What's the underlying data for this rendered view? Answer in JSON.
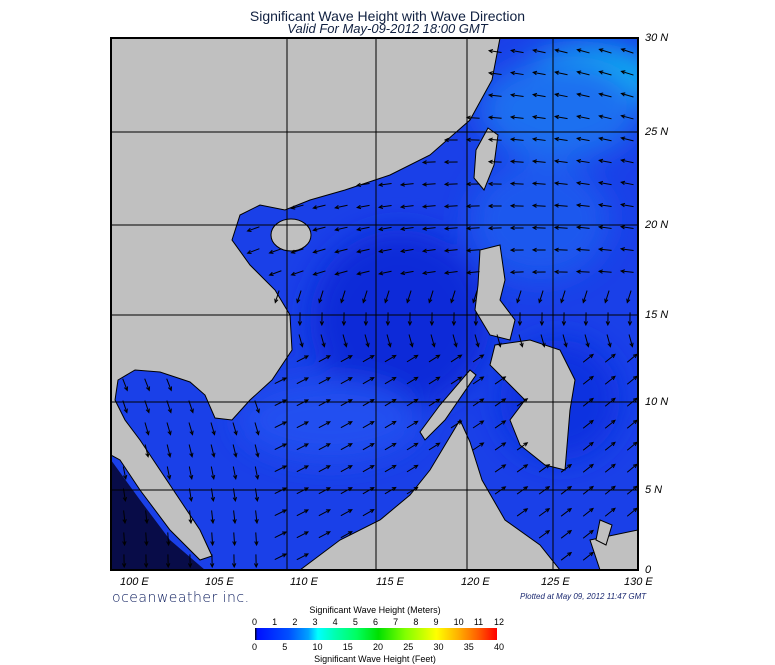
{
  "title": "Significant Wave Height with Wave Direction",
  "subtitle": "Valid For May-09-2012 18:00 GMT",
  "lon_labels": [
    "100 E",
    "105 E",
    "110 E",
    "115 E",
    "120 E",
    "125 E",
    "130 E"
  ],
  "lat_labels": [
    "30 N",
    "25 N",
    "20 N",
    "15 N",
    "10 N",
    "5 N",
    "0"
  ],
  "brand": "oceanweather inc.",
  "plotted": "Plotted at May 09, 2012 11:47 GMT",
  "legend": {
    "meters_title": "Significant Wave Height (Meters)",
    "meters_ticks": [
      "0",
      "1",
      "2",
      "3",
      "4",
      "5",
      "6",
      "7",
      "8",
      "9",
      "10",
      "11",
      "12"
    ],
    "feet_ticks": [
      "0",
      "5",
      "10",
      "15",
      "20",
      "25",
      "30",
      "35",
      "40"
    ],
    "feet_title": "Significant Wave Height (Feet)"
  },
  "colors": {
    "land": "#c0c0c0",
    "ocean": "#1a40e8",
    "deep": "#0a14a0",
    "light": "#1a90f0"
  }
}
